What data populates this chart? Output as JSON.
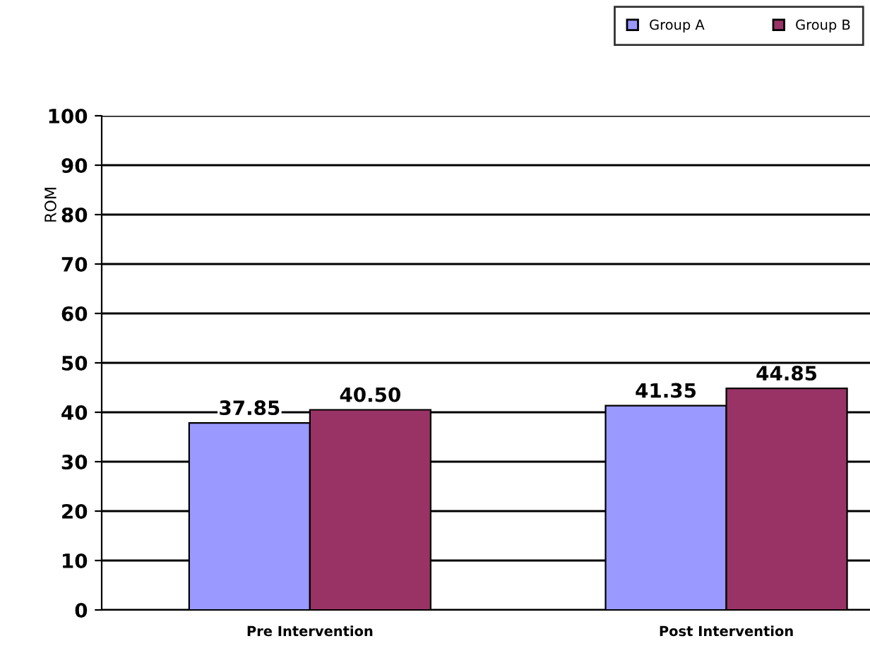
{
  "chart_data": {
    "type": "bar",
    "ylabel": "ROM",
    "categories": [
      "Pre Intervention",
      "Post Intervention"
    ],
    "series": [
      {
        "name": "Group A",
        "color": "#9999ff",
        "values": [
          37.85,
          41.35
        ],
        "value_labels": [
          "37.85",
          "41.35"
        ]
      },
      {
        "name": "Group B",
        "color": "#993366",
        "values": [
          40.5,
          44.85
        ],
        "value_labels": [
          "40.50",
          "44.85"
        ]
      }
    ],
    "ylim": [
      0,
      100
    ],
    "yticks": [
      0,
      10,
      20,
      30,
      40,
      50,
      60,
      70,
      80,
      90,
      100
    ],
    "grid": "y",
    "legend": "top right"
  }
}
